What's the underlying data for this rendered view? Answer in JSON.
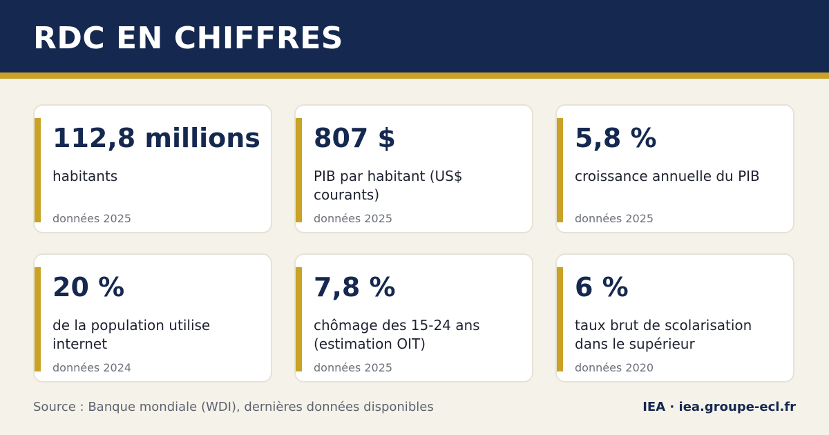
{
  "header": {
    "title": "RDC EN CHIFFRES"
  },
  "colors": {
    "header_bg": "#15284f",
    "accent": "#c9a227",
    "page_bg": "#f5f2ea",
    "card_bg": "#ffffff",
    "value_text": "#15284f"
  },
  "cards": [
    {
      "value": "112,8 millions",
      "label": "habitants",
      "year": "données 2025"
    },
    {
      "value": "807 $",
      "label": "PIB par habitant (US$ courants)",
      "year": "données 2025"
    },
    {
      "value": "5,8 %",
      "label": "croissance annuelle du PIB",
      "year": "données 2025"
    },
    {
      "value": "20 %",
      "label": "de la population utilise internet",
      "year": "données 2024"
    },
    {
      "value": "7,8 %",
      "label": "chômage des 15-24 ans (estimation OIT)",
      "year": "données 2025"
    },
    {
      "value": "6 %",
      "label": "taux brut de scolarisation dans le supérieur",
      "year": "données 2020"
    }
  ],
  "footer": {
    "source": "Source : Banque mondiale (WDI), dernières données disponibles",
    "brand": "IEA · iea.groupe-ecl.fr"
  }
}
